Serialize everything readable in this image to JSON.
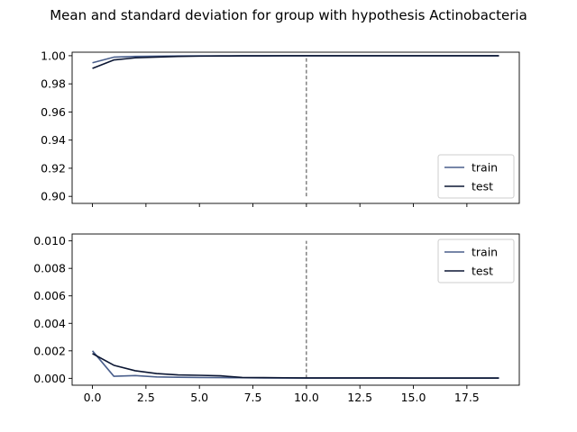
{
  "figure": {
    "title": "Mean and standard deviation for group with hypothesis Actinobacteria"
  },
  "colors": {
    "train": "#4a5f8c",
    "test": "#0b1633",
    "vline": "#444444"
  },
  "chart_data": [
    {
      "type": "line",
      "panel": "mean",
      "xlim": [
        -0.95,
        19.95
      ],
      "ylim": [
        0.895,
        1.0025
      ],
      "yticks": [
        0.9,
        0.92,
        0.94,
        0.96,
        0.98,
        1.0
      ],
      "ytick_labels": [
        "0.90",
        "0.92",
        "0.94",
        "0.96",
        "0.98",
        "1.00"
      ],
      "xticks": [
        0,
        2.5,
        5,
        7.5,
        10,
        12.5,
        15,
        17.5
      ],
      "vline": {
        "x": 10,
        "ymin": 0.9,
        "ymax": 1.0
      },
      "legend": "lower right",
      "grid": false,
      "series": [
        {
          "name": "train",
          "color_key": "train",
          "x": [
            0,
            1,
            2,
            3,
            4,
            5,
            6,
            7,
            8,
            9,
            10,
            11,
            12,
            13,
            14,
            15,
            16,
            17,
            18,
            19
          ],
          "values": [
            0.995,
            0.999,
            0.9995,
            0.9997,
            0.9998,
            0.9999,
            0.9999,
            1.0,
            1.0,
            1.0,
            1.0,
            1.0,
            1.0,
            1.0,
            1.0,
            1.0,
            1.0,
            1.0,
            1.0,
            1.0
          ]
        },
        {
          "name": "test",
          "color_key": "test",
          "x": [
            0,
            1,
            2,
            3,
            4,
            5,
            6,
            7,
            8,
            9,
            10,
            11,
            12,
            13,
            14,
            15,
            16,
            17,
            18,
            19
          ],
          "values": [
            0.991,
            0.997,
            0.9985,
            0.999,
            0.9995,
            0.9997,
            0.9998,
            0.9999,
            0.9999,
            1.0,
            1.0,
            1.0,
            1.0,
            1.0,
            1.0,
            1.0,
            1.0,
            1.0,
            1.0,
            1.0
          ]
        }
      ]
    },
    {
      "type": "line",
      "panel": "std",
      "xlim": [
        -0.95,
        19.95
      ],
      "ylim": [
        -0.0005,
        0.0105
      ],
      "yticks": [
        0.0,
        0.002,
        0.004,
        0.006,
        0.008,
        0.01
      ],
      "ytick_labels": [
        "0.000",
        "0.002",
        "0.004",
        "0.006",
        "0.008",
        "0.010"
      ],
      "xticks": [
        0,
        2.5,
        5,
        7.5,
        10,
        12.5,
        15,
        17.5
      ],
      "xtick_labels": [
        "0.0",
        "2.5",
        "5.0",
        "7.5",
        "10.0",
        "12.5",
        "15.0",
        "17.5"
      ],
      "vline": {
        "x": 10,
        "ymin": 0.0,
        "ymax": 0.01
      },
      "legend": "upper right",
      "grid": false,
      "series": [
        {
          "name": "train",
          "color_key": "train",
          "x": [
            0,
            1,
            2,
            3,
            4,
            5,
            6,
            7,
            8,
            9,
            10,
            11,
            12,
            13,
            14,
            15,
            16,
            17,
            18,
            19
          ],
          "values": [
            0.002,
            0.00015,
            0.0002,
            0.0001,
            8e-05,
            6e-05,
            5e-05,
            4e-05,
            3e-05,
            2e-05,
            2e-05,
            2e-05,
            2e-05,
            2e-05,
            2e-05,
            2e-05,
            2e-05,
            2e-05,
            2e-05,
            2e-05
          ]
        },
        {
          "name": "test",
          "color_key": "test",
          "x": [
            0,
            1,
            2,
            3,
            4,
            5,
            6,
            7,
            8,
            9,
            10,
            11,
            12,
            13,
            14,
            15,
            16,
            17,
            18,
            19
          ],
          "values": [
            0.0018,
            0.00095,
            0.00055,
            0.00035,
            0.00025,
            0.00022,
            0.00018,
            6e-05,
            5e-05,
            4e-05,
            3e-05,
            3e-05,
            3e-05,
            3e-05,
            3e-05,
            2e-05,
            2e-05,
            2e-05,
            2e-05,
            2e-05
          ]
        }
      ]
    }
  ]
}
